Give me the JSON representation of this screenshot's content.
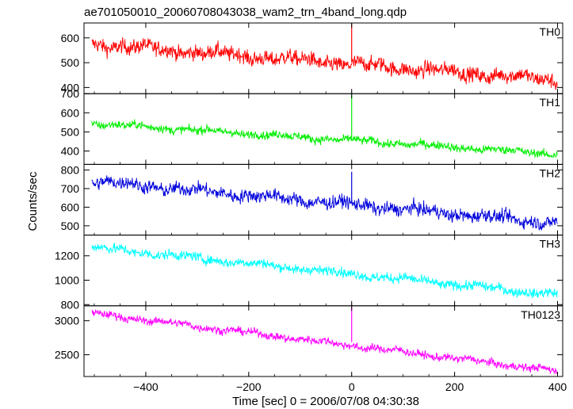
{
  "chart_data": {
    "type": "line",
    "title": "ae701050010_20060708043038_wam2_trn_4band_long.qdp",
    "xlabel": "Time [sec] 0 = 2006/07/08 04:30:38",
    "ylabel": "Counts/sec",
    "xlim": [
      -520,
      410
    ],
    "x_ticks": [
      -400,
      -200,
      0,
      200,
      400
    ],
    "x_tick_labels": [
      "−400",
      "−200",
      "0",
      "200",
      "400"
    ],
    "t_start": -505,
    "t_end": 400,
    "panels": [
      {
        "name": "TH0",
        "color": "#ff0000",
        "ylim": [
          375,
          660
        ],
        "y_ticks": [
          400,
          500,
          600
        ],
        "y_tick_labels": [
          "400",
          "500",
          "600"
        ],
        "start_level": 575,
        "end_level": 430,
        "noise": 35,
        "spike_x": 0,
        "spike_top": 660
      },
      {
        "name": "TH1",
        "color": "#00ee00",
        "ylim": [
          330,
          700
        ],
        "y_ticks": [
          400,
          500,
          600,
          700
        ],
        "y_tick_labels": [
          "400",
          "500",
          "600",
          "700"
        ],
        "start_level": 545,
        "end_level": 385,
        "noise": 25,
        "spike_x": 0,
        "spike_top": 700
      },
      {
        "name": "TH2",
        "color": "#0000dd",
        "ylim": [
          450,
          830
        ],
        "y_ticks": [
          500,
          600,
          700,
          800
        ],
        "y_tick_labels": [
          "500",
          "600",
          "700",
          "800"
        ],
        "start_level": 740,
        "end_level": 515,
        "noise": 40,
        "spike_x": 0,
        "spike_top": 790
      },
      {
        "name": "TH3",
        "color": "#00ffff",
        "ylim": [
          790,
          1370
        ],
        "y_ticks": [
          800,
          1000,
          1200
        ],
        "y_tick_labels": [
          "800",
          "1000",
          "1200"
        ],
        "start_level": 1270,
        "end_level": 880,
        "noise": 45,
        "spike_x": null,
        "spike_top": null
      },
      {
        "name": "TH0123",
        "color": "#ff00ff",
        "ylim": [
          2180,
          3220
        ],
        "y_ticks": [
          2500,
          3000
        ],
        "y_tick_labels": [
          "2500",
          "3000"
        ],
        "start_level": 3110,
        "end_level": 2260,
        "noise": 65,
        "spike_x": 0,
        "spike_top": 3220
      }
    ]
  }
}
